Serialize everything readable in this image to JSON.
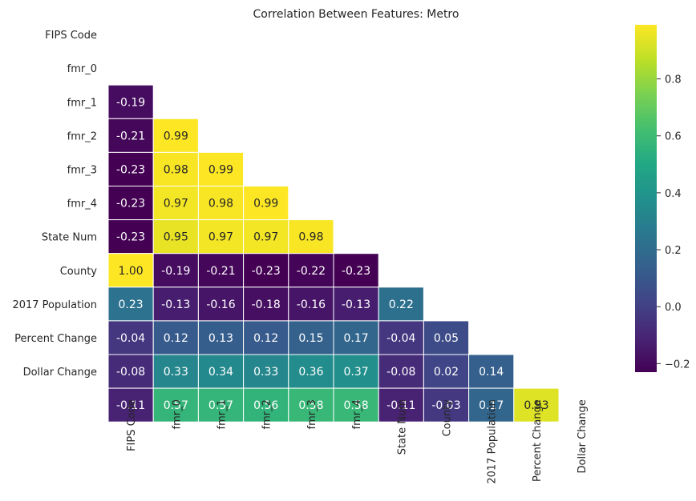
{
  "chart_data": {
    "type": "heatmap",
    "title": "Correlation Between Features: Metro",
    "rows": [
      "FIPS Code",
      "fmr_0",
      "fmr_1",
      "fmr_2",
      "fmr_3",
      "fmr_4",
      "State Num",
      "County",
      "2017 Population",
      "Percent Change",
      "Dollar Change"
    ],
    "columns": [
      "FIPS Code",
      "fmr_0",
      "fmr_1",
      "fmr_2",
      "fmr_3",
      "fmr_4",
      "State Num",
      "County",
      "2017 Population",
      "Percent Change",
      "Dollar Change"
    ],
    "mask": "upper-triangle-including-diagonal",
    "values": [
      [],
      [
        -0.19
      ],
      [
        -0.21,
        0.99
      ],
      [
        -0.23,
        0.98,
        0.99
      ],
      [
        -0.23,
        0.97,
        0.98,
        0.99
      ],
      [
        -0.23,
        0.95,
        0.97,
        0.97,
        0.98
      ],
      [
        1.0,
        -0.19,
        -0.21,
        -0.23,
        -0.22,
        -0.23
      ],
      [
        0.23,
        -0.13,
        -0.16,
        -0.18,
        -0.16,
        -0.13,
        0.22
      ],
      [
        -0.04,
        0.12,
        0.13,
        0.12,
        0.15,
        0.17,
        -0.04,
        0.05
      ],
      [
        -0.08,
        0.33,
        0.34,
        0.33,
        0.36,
        0.37,
        -0.08,
        0.02,
        0.14
      ],
      [
        -0.11,
        0.57,
        0.57,
        0.56,
        0.58,
        0.58,
        -0.11,
        -0.03,
        0.17,
        0.93
      ]
    ],
    "colormap": "viridis",
    "vmin": -0.23,
    "vmax": 0.99,
    "colorbar_ticks": [
      -0.2,
      0.0,
      0.2,
      0.4,
      0.6,
      0.8
    ],
    "colorbar_tick_labels": [
      "−0.2",
      "0.0",
      "0.2",
      "0.4",
      "0.6",
      "0.8"
    ],
    "annotation_format": "0.00",
    "grid": false
  }
}
